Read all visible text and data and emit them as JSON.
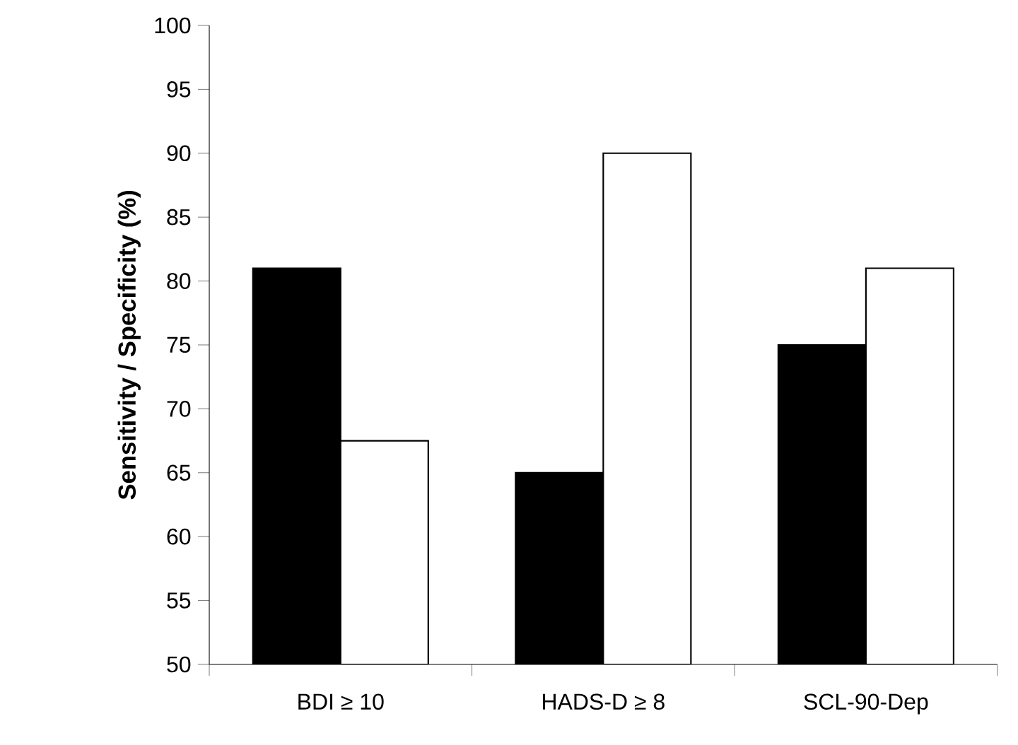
{
  "chart_data": {
    "type": "bar",
    "ylabel": "Sensitivity / Specificity (%)",
    "categories": [
      "BDI ≥ 10",
      "HADS-D ≥ 8",
      "SCL-90-Dep"
    ],
    "series": [
      {
        "color": "#000000",
        "values": [
          81,
          65,
          75
        ]
      },
      {
        "color": "#ffffff",
        "values": [
          67.5,
          90,
          81
        ]
      }
    ],
    "ylim": [
      50,
      100
    ],
    "yticks": [
      50,
      55,
      60,
      65,
      70,
      75,
      80,
      85,
      90,
      95,
      100
    ],
    "grid": false
  }
}
